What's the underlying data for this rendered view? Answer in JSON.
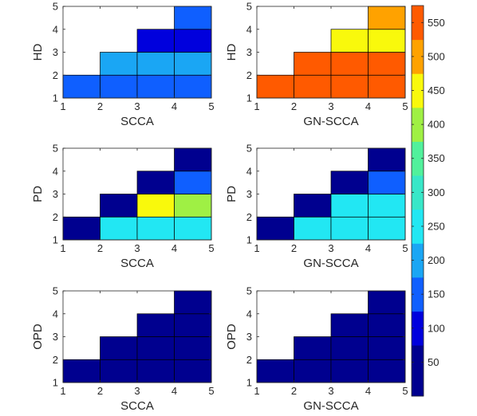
{
  "chart_data": {
    "type": "heatmap",
    "colorbar": {
      "ticks": [
        50,
        100,
        150,
        200,
        250,
        300,
        350,
        400,
        450,
        500,
        550
      ],
      "range": [
        0,
        575
      ],
      "bands": [
        {
          "from": 0,
          "to": 75,
          "color": "#00008f"
        },
        {
          "from": 75,
          "to": 125,
          "color": "#0000dd"
        },
        {
          "from": 125,
          "to": 175,
          "color": "#0f5fff"
        },
        {
          "from": 175,
          "to": 225,
          "color": "#1aa6f4"
        },
        {
          "from": 225,
          "to": 275,
          "color": "#22e7f3"
        },
        {
          "from": 275,
          "to": 325,
          "color": "#38e7c8"
        },
        {
          "from": 325,
          "to": 375,
          "color": "#51f19c"
        },
        {
          "from": 375,
          "to": 425,
          "color": "#9ff044"
        },
        {
          "from": 425,
          "to": 475,
          "color": "#f9f90c"
        },
        {
          "from": 475,
          "to": 525,
          "color": "#ffa200"
        },
        {
          "from": 525,
          "to": 575,
          "color": "#ff5a00"
        }
      ]
    },
    "panels": [
      {
        "id": "hd-scca",
        "xlabel": "SCCA",
        "ylabel": "HD",
        "xlim": [
          1,
          5
        ],
        "ylim": [
          1,
          5
        ],
        "xticks": [
          "1",
          "2",
          "3",
          "4",
          "5"
        ],
        "yticks": [
          "1",
          "2",
          "3",
          "4",
          "5"
        ],
        "cells": [
          {
            "x": 1,
            "y": 1,
            "value": 150
          },
          {
            "x": 2,
            "y": 1,
            "value": 150
          },
          {
            "x": 3,
            "y": 1,
            "value": 150
          },
          {
            "x": 4,
            "y": 1,
            "value": 150
          },
          {
            "x": 2,
            "y": 2,
            "value": 200
          },
          {
            "x": 3,
            "y": 2,
            "value": 200
          },
          {
            "x": 4,
            "y": 2,
            "value": 200
          },
          {
            "x": 3,
            "y": 3,
            "value": 100
          },
          {
            "x": 4,
            "y": 3,
            "value": 100
          },
          {
            "x": 4,
            "y": 4,
            "value": 150
          }
        ]
      },
      {
        "id": "hd-gnscca",
        "xlabel": "GN-SCCA",
        "ylabel": "HD",
        "xlim": [
          1,
          5
        ],
        "ylim": [
          1,
          5
        ],
        "xticks": [
          "1",
          "2",
          "3",
          "4",
          "5"
        ],
        "yticks": [
          "1",
          "2",
          "3",
          "4",
          "5"
        ],
        "cells": [
          {
            "x": 1,
            "y": 1,
            "value": 550
          },
          {
            "x": 2,
            "y": 1,
            "value": 550
          },
          {
            "x": 3,
            "y": 1,
            "value": 550
          },
          {
            "x": 4,
            "y": 1,
            "value": 550
          },
          {
            "x": 2,
            "y": 2,
            "value": 550
          },
          {
            "x": 3,
            "y": 2,
            "value": 550
          },
          {
            "x": 4,
            "y": 2,
            "value": 550
          },
          {
            "x": 3,
            "y": 3,
            "value": 450
          },
          {
            "x": 4,
            "y": 3,
            "value": 450
          },
          {
            "x": 4,
            "y": 4,
            "value": 500
          }
        ]
      },
      {
        "id": "pd-scca",
        "xlabel": "SCCA",
        "ylabel": "PD",
        "xlim": [
          1,
          5
        ],
        "ylim": [
          1,
          5
        ],
        "xticks": [
          "1",
          "2",
          "3",
          "4",
          "5"
        ],
        "yticks": [
          "1",
          "2",
          "3",
          "4",
          "5"
        ],
        "cells": [
          {
            "x": 1,
            "y": 1,
            "value": 50
          },
          {
            "x": 2,
            "y": 1,
            "value": 250
          },
          {
            "x": 3,
            "y": 1,
            "value": 250
          },
          {
            "x": 4,
            "y": 1,
            "value": 250
          },
          {
            "x": 2,
            "y": 2,
            "value": 50
          },
          {
            "x": 3,
            "y": 2,
            "value": 450
          },
          {
            "x": 4,
            "y": 2,
            "value": 400
          },
          {
            "x": 3,
            "y": 3,
            "value": 50
          },
          {
            "x": 4,
            "y": 3,
            "value": 150
          },
          {
            "x": 4,
            "y": 4,
            "value": 50
          }
        ]
      },
      {
        "id": "pd-gnscca",
        "xlabel": "GN-SCCA",
        "ylabel": "PD",
        "xlim": [
          1,
          5
        ],
        "ylim": [
          1,
          5
        ],
        "xticks": [
          "1",
          "2",
          "3",
          "4",
          "5"
        ],
        "yticks": [
          "1",
          "2",
          "3",
          "4",
          "5"
        ],
        "cells": [
          {
            "x": 1,
            "y": 1,
            "value": 50
          },
          {
            "x": 2,
            "y": 1,
            "value": 250
          },
          {
            "x": 3,
            "y": 1,
            "value": 250
          },
          {
            "x": 4,
            "y": 1,
            "value": 250
          },
          {
            "x": 2,
            "y": 2,
            "value": 50
          },
          {
            "x": 3,
            "y": 2,
            "value": 250
          },
          {
            "x": 4,
            "y": 2,
            "value": 250
          },
          {
            "x": 3,
            "y": 3,
            "value": 50
          },
          {
            "x": 4,
            "y": 3,
            "value": 150
          },
          {
            "x": 4,
            "y": 4,
            "value": 50
          }
        ]
      },
      {
        "id": "opd-scca",
        "xlabel": "SCCA",
        "ylabel": "OPD",
        "xlim": [
          1,
          5
        ],
        "ylim": [
          1,
          5
        ],
        "xticks": [
          "1",
          "2",
          "3",
          "4",
          "5"
        ],
        "yticks": [
          "1",
          "2",
          "3",
          "4",
          "5"
        ],
        "cells": [
          {
            "x": 1,
            "y": 1,
            "value": 50
          },
          {
            "x": 2,
            "y": 1,
            "value": 50
          },
          {
            "x": 3,
            "y": 1,
            "value": 50
          },
          {
            "x": 4,
            "y": 1,
            "value": 50
          },
          {
            "x": 2,
            "y": 2,
            "value": 50
          },
          {
            "x": 3,
            "y": 2,
            "value": 50
          },
          {
            "x": 4,
            "y": 2,
            "value": 50
          },
          {
            "x": 3,
            "y": 3,
            "value": 50
          },
          {
            "x": 4,
            "y": 3,
            "value": 50
          },
          {
            "x": 4,
            "y": 4,
            "value": 50
          }
        ]
      },
      {
        "id": "opd-gnscca",
        "xlabel": "GN-SCCA",
        "ylabel": "OPD",
        "xlim": [
          1,
          5
        ],
        "ylim": [
          1,
          5
        ],
        "xticks": [
          "1",
          "2",
          "3",
          "4",
          "5"
        ],
        "yticks": [
          "1",
          "2",
          "3",
          "4",
          "5"
        ],
        "cells": [
          {
            "x": 1,
            "y": 1,
            "value": 50
          },
          {
            "x": 2,
            "y": 1,
            "value": 50
          },
          {
            "x": 3,
            "y": 1,
            "value": 50
          },
          {
            "x": 4,
            "y": 1,
            "value": 50
          },
          {
            "x": 2,
            "y": 2,
            "value": 50
          },
          {
            "x": 3,
            "y": 2,
            "value": 50
          },
          {
            "x": 4,
            "y": 2,
            "value": 50
          },
          {
            "x": 3,
            "y": 3,
            "value": 50
          },
          {
            "x": 4,
            "y": 3,
            "value": 50
          },
          {
            "x": 4,
            "y": 4,
            "value": 50
          }
        ]
      }
    ]
  }
}
